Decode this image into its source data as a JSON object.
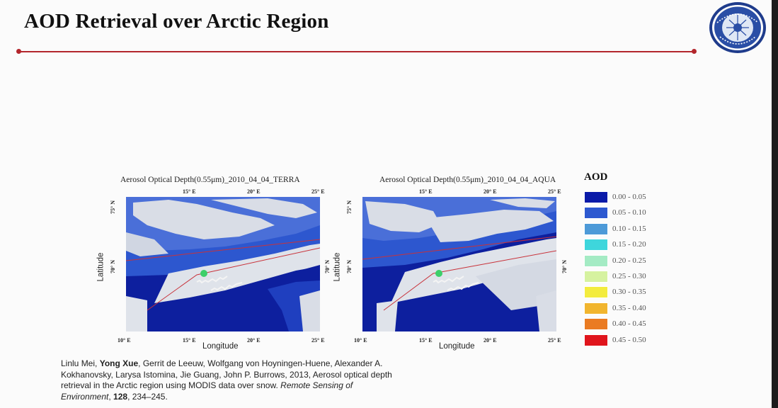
{
  "slide": {
    "title": "AOD Retrieval over Arctic Region"
  },
  "panels": [
    {
      "title": "Aerosol Optical Depth(0.55μm)_2010_04_04_TERRA",
      "top_ticks": [
        "15° E",
        "20° E",
        "25° E"
      ],
      "bottom_ticks": [
        "10° E",
        "15° E",
        "20° E",
        "25° E"
      ],
      "left_ticks": [
        "75° N",
        "70° N"
      ],
      "right_ticks": [
        "70° N"
      ],
      "xlabel": "Longitude",
      "ylabel": "Latitude"
    },
    {
      "title": "Aerosol Optical Depth(0.55μm)_2010_04_04_AQUA",
      "top_ticks": [
        "15° E",
        "20° E",
        "25° E"
      ],
      "bottom_ticks": [
        "10° E",
        "15° E",
        "20° E",
        "25° E"
      ],
      "left_ticks": [
        "75° N",
        "70° N"
      ],
      "right_ticks": [
        "70° N"
      ],
      "xlabel": "Longitude",
      "ylabel": "Latitude"
    }
  ],
  "legend": {
    "title": "AOD",
    "items": [
      {
        "label": "0.00 - 0.05",
        "color": "#0a1aa8"
      },
      {
        "label": "0.05 - 0.10",
        "color": "#2d59d0"
      },
      {
        "label": "0.10 - 0.15",
        "color": "#4d9ad8"
      },
      {
        "label": "0.15 - 0.20",
        "color": "#3ed6dc"
      },
      {
        "label": "0.20 - 0.25",
        "color": "#a4ebc4"
      },
      {
        "label": "0.25 - 0.30",
        "color": "#d6f2a0"
      },
      {
        "label": "0.30 - 0.35",
        "color": "#f3ec3e"
      },
      {
        "label": "0.35 - 0.40",
        "color": "#f1b52e"
      },
      {
        "label": "0.40 - 0.45",
        "color": "#ea7b22"
      },
      {
        "label": "0.45 - 0.50",
        "color": "#e0151c"
      }
    ]
  },
  "citation": {
    "authors_pre": "Linlu Mei, ",
    "author_bold": "Yong Xue",
    "authors_post": ", Gerrit de Leeuw, Wolfgang von Hoyningen-Huene, Alexander A. Kokhanovsky, Larysa Istomina, Jie Guang, John P. Burrows, 2013, Aerosol optical depth retrieval in the Arctic region using MODIS data over snow. ",
    "journal": "Remote Sensing of Environment",
    "sep1": ", ",
    "volume": "128",
    "sep2": ", 234–245."
  }
}
